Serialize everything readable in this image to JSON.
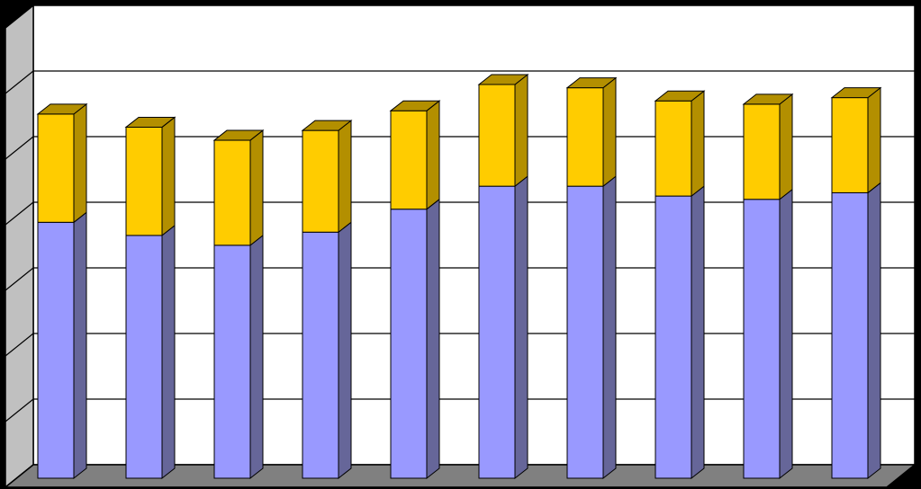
{
  "chart_data": {
    "type": "bar",
    "stacked": true,
    "three_d": true,
    "title": "",
    "xlabel": "",
    "ylabel": "",
    "categories": [
      "",
      "",
      "",
      "",
      "",
      "",
      "",
      "",
      "",
      ""
    ],
    "ylim": [
      0,
      7
    ],
    "grid": true,
    "legend": "none",
    "series": [
      {
        "color": "#9999FF",
        "side_color": "#666699",
        "values": [
          3.9,
          3.7,
          3.55,
          3.75,
          4.1,
          4.45,
          4.45,
          4.3,
          4.25,
          4.35
        ]
      },
      {
        "color": "#FFCC00",
        "side_color": "#B38F00",
        "values": [
          1.65,
          1.65,
          1.6,
          1.55,
          1.5,
          1.55,
          1.5,
          1.45,
          1.45,
          1.45
        ]
      }
    ],
    "colors": {
      "background": "#000000",
      "plot_back_wall": "#FFFFFF",
      "plot_side_wall": "#C0C0C0",
      "floor": "#808080",
      "grid": "#000000"
    }
  }
}
